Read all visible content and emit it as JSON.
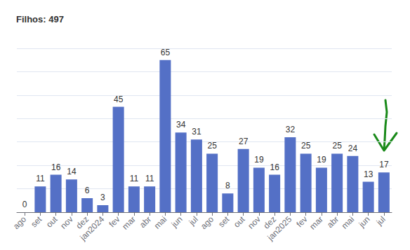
{
  "chart_data": {
    "type": "bar",
    "title": "Filhos: 497",
    "categories": [
      "ago",
      "set",
      "out",
      "nov",
      "dez",
      "jan2024",
      "fev",
      "mar",
      "abr",
      "mai",
      "jun",
      "jul",
      "ago",
      "set",
      "out",
      "nov",
      "dez",
      "jan2025",
      "fev",
      "mar",
      "abr",
      "mai",
      "jun",
      "jul"
    ],
    "values": [
      0,
      11,
      16,
      14,
      6,
      3,
      45,
      11,
      11,
      65,
      34,
      31,
      25,
      8,
      27,
      19,
      16,
      32,
      25,
      19,
      25,
      24,
      13,
      17
    ],
    "color": "#5470c6",
    "ylim": [
      0,
      70
    ],
    "yticks": [
      0,
      10,
      20,
      30,
      40,
      50,
      60,
      70
    ],
    "grid": true,
    "data_labels": true,
    "tick_labels": "x"
  }
}
